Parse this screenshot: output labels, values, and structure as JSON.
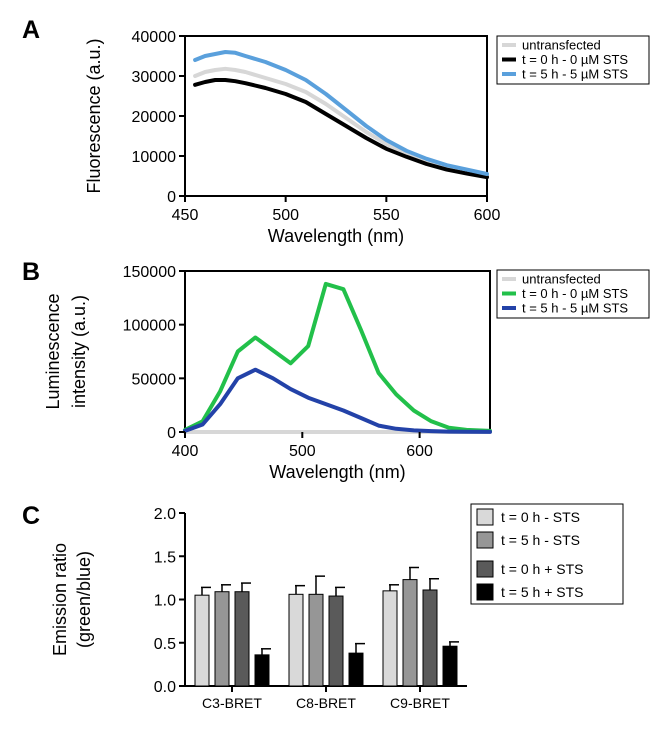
{
  "chart_data": [
    {
      "panel": "A",
      "type": "line",
      "xlabel": "Wavelength (nm)",
      "ylabel": "Fluorescence (a.u.)",
      "xlim": [
        450,
        600
      ],
      "ylim": [
        0,
        40000
      ],
      "x_ticks": [
        450,
        500,
        550,
        600
      ],
      "y_ticks": [
        0,
        10000,
        20000,
        30000,
        40000
      ],
      "legend_position": "top-right",
      "series": [
        {
          "name": "untransfected",
          "color": "#d7d7d7",
          "x": [
            455,
            460,
            465,
            470,
            475,
            480,
            490,
            500,
            510,
            520,
            530,
            540,
            550,
            560,
            570,
            580,
            590,
            600
          ],
          "y": [
            30000,
            31000,
            31500,
            31800,
            31500,
            31000,
            29500,
            28000,
            26000,
            23000,
            19500,
            16000,
            13000,
            10500,
            8500,
            7000,
            6000,
            5000
          ]
        },
        {
          "name": "t = 0 h - 0 µM STS",
          "color": "#000000",
          "x": [
            455,
            460,
            465,
            470,
            475,
            480,
            490,
            500,
            510,
            520,
            530,
            540,
            550,
            560,
            570,
            580,
            590,
            600
          ],
          "y": [
            27800,
            28500,
            29000,
            29000,
            28700,
            28200,
            27000,
            25500,
            23500,
            20500,
            17500,
            14500,
            11800,
            9800,
            8000,
            6600,
            5600,
            4700
          ]
        },
        {
          "name": "t = 5 h - 5 µM STS",
          "color": "#5aa0dc",
          "x": [
            455,
            460,
            465,
            470,
            475,
            480,
            490,
            500,
            510,
            520,
            530,
            540,
            550,
            560,
            570,
            580,
            590,
            600
          ],
          "y": [
            34000,
            35000,
            35500,
            36000,
            35800,
            35000,
            33500,
            31500,
            29000,
            25500,
            21500,
            17500,
            14000,
            11300,
            9300,
            7700,
            6600,
            5500
          ]
        }
      ]
    },
    {
      "panel": "B",
      "type": "line",
      "xlabel": "Wavelength (nm)",
      "ylabel_lines": [
        "Luminescence",
        "intensity (a.u.)"
      ],
      "xlim": [
        400,
        660
      ],
      "ylim": [
        0,
        150000
      ],
      "x_ticks": [
        400,
        500,
        600
      ],
      "y_ticks": [
        0,
        50000,
        100000,
        150000
      ],
      "legend_position": "top-right",
      "series": [
        {
          "name": "untransfected",
          "color": "#d7d7d7",
          "x": [
            400,
            660
          ],
          "y": [
            0,
            0
          ]
        },
        {
          "name": "t = 0 h - 0 µM STS",
          "color": "#22c04a",
          "x": [
            400,
            415,
            430,
            445,
            460,
            475,
            490,
            505,
            520,
            535,
            550,
            565,
            580,
            595,
            610,
            625,
            640,
            660
          ],
          "y": [
            2000,
            10000,
            38000,
            75000,
            88000,
            76000,
            64000,
            80000,
            138000,
            133000,
            95000,
            55000,
            35000,
            20000,
            10000,
            4000,
            2000,
            1000
          ]
        },
        {
          "name": "t = 5 h - 5 µM STS",
          "color": "#2342a8",
          "x": [
            400,
            415,
            430,
            445,
            460,
            475,
            490,
            505,
            520,
            535,
            550,
            565,
            580,
            595,
            610,
            625,
            640,
            660
          ],
          "y": [
            1000,
            7000,
            26000,
            50000,
            58000,
            50000,
            40000,
            32000,
            26000,
            20000,
            13000,
            6000,
            3000,
            1500,
            800,
            400,
            200,
            100
          ]
        }
      ]
    },
    {
      "panel": "C",
      "type": "bar",
      "ylabel_lines": [
        "Emission ratio",
        "(green/blue)"
      ],
      "ylim": [
        0,
        2.0
      ],
      "y_ticks": [
        "0.0",
        "0.5",
        "1.0",
        "1.5",
        "2.0"
      ],
      "categories": [
        "C3-BRET",
        "C8-BRET",
        "C9-BRET"
      ],
      "legend_position": "right",
      "series": [
        {
          "name": "t = 0 h - STS",
          "color": "#d9d9d9",
          "values": [
            1.05,
            1.06,
            1.1
          ],
          "errors": [
            0.09,
            0.1,
            0.07
          ]
        },
        {
          "name": "t = 5 h - STS",
          "color": "#969696",
          "values": [
            1.09,
            1.06,
            1.23
          ],
          "errors": [
            0.08,
            0.21,
            0.14
          ]
        },
        {
          "name": "t = 0 h + STS",
          "color": "#5a5a5a",
          "values": [
            1.09,
            1.04,
            1.11
          ],
          "errors": [
            0.1,
            0.1,
            0.13
          ]
        },
        {
          "name": "t = 5 h + STS",
          "color": "#000000",
          "values": [
            0.36,
            0.38,
            0.46
          ],
          "errors": [
            0.07,
            0.11,
            0.05
          ]
        }
      ]
    }
  ]
}
